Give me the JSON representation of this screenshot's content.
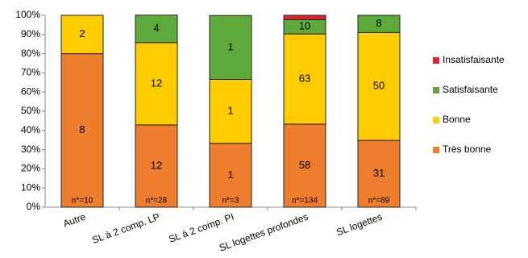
{
  "chart_data": {
    "type": "stacked_bar",
    "categories": [
      "Autre",
      "SL à 2 comp. LP",
      "SL à 2 comp. PI",
      "SL logettes profondes",
      "SL logettes"
    ],
    "n_labels": [
      "n*=10",
      "n*=28",
      "n*=3",
      "n*=134",
      "n*=89"
    ],
    "series": [
      {
        "name": "Très bonne",
        "color": "#ee7d2e",
        "values": [
          80,
          42.9,
          33.3,
          43.3,
          34.8
        ],
        "counts": [
          8,
          12,
          1,
          58,
          31
        ]
      },
      {
        "name": "Bonne",
        "color": "#ffcc00",
        "values": [
          20,
          42.9,
          33.3,
          47.0,
          56.2
        ],
        "counts": [
          2,
          12,
          1,
          63,
          50
        ]
      },
      {
        "name": "Satisfaisante",
        "color": "#5daa3b",
        "values": [
          null,
          14.3,
          33.3,
          7.5,
          9.0
        ],
        "counts": [
          null,
          4,
          1,
          10,
          8
        ]
      },
      {
        "name": "Insatisfaisante",
        "color": "#e8202a",
        "values": [
          null,
          null,
          null,
          2.2,
          null
        ],
        "counts": [
          null,
          null,
          null,
          null,
          null
        ]
      }
    ],
    "ylim": [
      0,
      100
    ],
    "yticks": [
      {
        "value": 0,
        "label": "0%"
      },
      {
        "value": 10,
        "label": "10%"
      },
      {
        "value": 20,
        "label": "20%"
      },
      {
        "value": 30,
        "label": "30%"
      },
      {
        "value": 40,
        "label": "40%"
      },
      {
        "value": 50,
        "label": "50%"
      },
      {
        "value": 60,
        "label": "60%"
      },
      {
        "value": 70,
        "label": "70%"
      },
      {
        "value": 80,
        "label": "80%"
      },
      {
        "value": 90,
        "label": "90%"
      },
      {
        "value": 100,
        "label": "100%"
      }
    ],
    "grid": false
  }
}
